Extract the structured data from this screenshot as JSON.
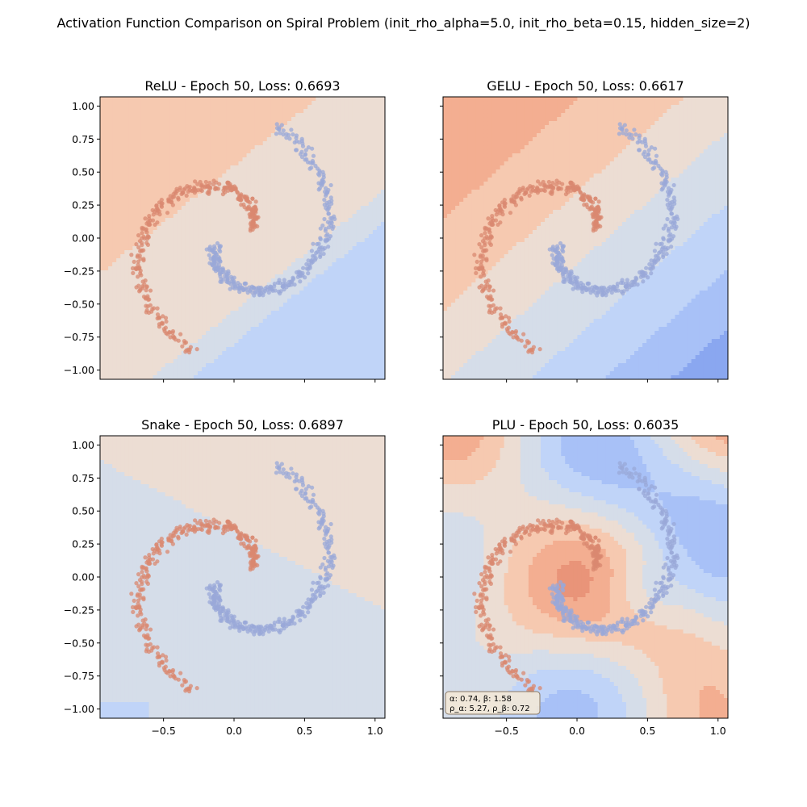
{
  "figure": {
    "suptitle": "Activation Function Comparison on Spiral Problem (init_rho_alpha=5.0, init_rho_beta=0.15, hidden_size=2)"
  },
  "axes_common": {
    "x_ticks": [
      -0.5,
      0.0,
      0.5,
      1.0
    ],
    "x_tick_labels": [
      "−0.5",
      "0.0",
      "0.5",
      "1.0"
    ],
    "y_ticks": [
      1.0,
      0.75,
      0.5,
      0.25,
      0.0,
      -0.25,
      -0.5,
      -0.75,
      -1.0
    ],
    "y_tick_labels": [
      "1.00",
      "0.75",
      "0.50",
      "0.25",
      "0.00",
      "−0.25",
      "−0.50",
      "−0.75",
      "−1.00"
    ]
  },
  "colors": {
    "class_red": "#d98870",
    "class_blue": "#9aa8d8",
    "contour_palette": [
      "#8aa7f0",
      "#a8c1f7",
      "#c0d4f8",
      "#d5dde9",
      "#ecddd3",
      "#f6c9b0",
      "#f3ae91",
      "#e99479"
    ]
  },
  "chart_data": [
    {
      "type": "scatter",
      "title": "ReLU - Epoch 50, Loss: 0.6693",
      "activation": "ReLU",
      "epoch": 50,
      "loss": 0.6693,
      "xlim": [
        -0.95,
        1.07
      ],
      "ylim": [
        -1.07,
        1.07
      ],
      "background": "filled decision-boundary contours (coolwarm)",
      "series": [
        {
          "name": "",
          "color": "class_red",
          "description": "spiral arm A, ~350 points"
        },
        {
          "name": "",
          "color": "class_blue",
          "description": "spiral arm B, ~350 points"
        }
      ]
    },
    {
      "type": "scatter",
      "title": "GELU - Epoch 50, Loss: 0.6617",
      "activation": "GELU",
      "epoch": 50,
      "loss": 0.6617,
      "xlim": [
        -0.95,
        1.07
      ],
      "ylim": [
        -1.07,
        1.07
      ],
      "background": "filled decision-boundary contours (coolwarm)",
      "series": [
        {
          "name": "",
          "color": "class_red",
          "description": "spiral arm A, ~350 points"
        },
        {
          "name": "",
          "color": "class_blue",
          "description": "spiral arm B, ~350 points"
        }
      ]
    },
    {
      "type": "scatter",
      "title": "Snake - Epoch 50, Loss: 0.6897",
      "activation": "Snake",
      "epoch": 50,
      "loss": 0.6897,
      "xlim": [
        -0.95,
        1.07
      ],
      "ylim": [
        -1.07,
        1.07
      ],
      "background": "filled decision-boundary contours (coolwarm)",
      "series": [
        {
          "name": "",
          "color": "class_red",
          "description": "spiral arm A, ~350 points"
        },
        {
          "name": "",
          "color": "class_blue",
          "description": "spiral arm B, ~350 points"
        }
      ]
    },
    {
      "type": "scatter",
      "title": "PLU - Epoch 50, Loss: 0.6035",
      "activation": "PLU",
      "epoch": 50,
      "loss": 0.6035,
      "xlim": [
        -0.95,
        1.07
      ],
      "ylim": [
        -1.07,
        1.07
      ],
      "background": "filled decision-boundary contours (coolwarm)",
      "annotation": [
        "α: 0.74, β: 1.58",
        "ρ_α: 5.27, ρ_β: 0.72"
      ],
      "series": [
        {
          "name": "",
          "color": "class_red",
          "description": "spiral arm A, ~350 points"
        },
        {
          "name": "",
          "color": "class_blue",
          "description": "spiral arm B, ~350 points"
        }
      ]
    }
  ]
}
